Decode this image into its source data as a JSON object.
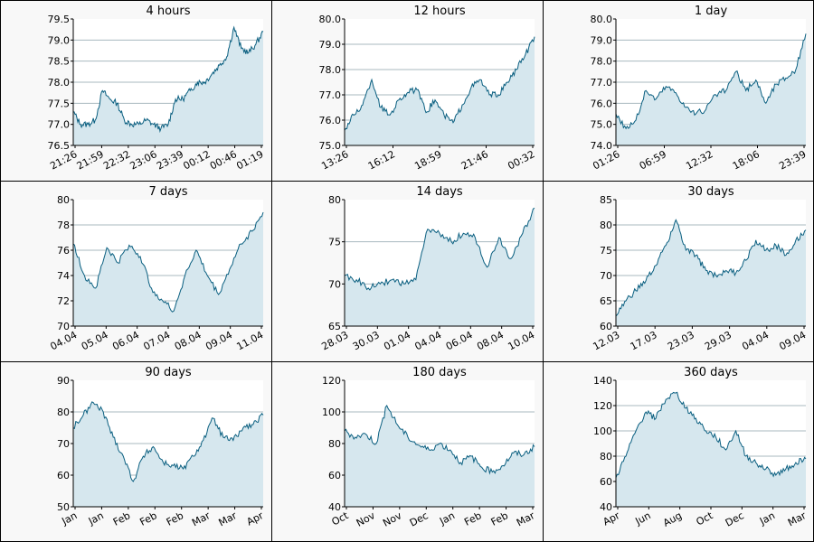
{
  "colors": {
    "line": "#0a5f80",
    "fill": "#d6e7ee",
    "grid": "#a8b8bf",
    "axis": "#000000",
    "panel_bg": "#f8f8f8",
    "plot_bg": "#ffffff"
  },
  "chart_data": [
    {
      "type": "area",
      "title": "4 hours",
      "ylim": [
        76.5,
        79.5
      ],
      "yticks": [
        "79.5",
        "79.0",
        "78.5",
        "78.0",
        "77.5",
        "77.0",
        "76.5"
      ],
      "xticks": [
        "21:26",
        "21:59",
        "22:32",
        "23:06",
        "23:39",
        "00:12",
        "00:46",
        "01:19"
      ],
      "values": [
        77.3,
        77.0,
        77.0,
        77.1,
        77.8,
        77.6,
        77.5,
        77.1,
        77.0,
        77.0,
        77.1,
        77.0,
        76.9,
        77.0,
        77.6,
        77.6,
        77.8,
        78.0,
        78.0,
        78.2,
        78.4,
        78.6,
        79.3,
        78.8,
        78.7,
        78.9,
        79.2
      ]
    },
    {
      "type": "area",
      "title": "12 hours",
      "ylim": [
        75.0,
        80.0
      ],
      "yticks": [
        "80.0",
        "79.0",
        "78.0",
        "77.0",
        "76.0",
        "75.0"
      ],
      "xticks": [
        "13:26",
        "16:12",
        "18:59",
        "21:46",
        "00:32"
      ],
      "values": [
        75.6,
        76.2,
        76.6,
        77.6,
        76.5,
        76.2,
        76.8,
        77.1,
        77.2,
        76.3,
        76.8,
        76.2,
        75.9,
        76.6,
        77.3,
        77.6,
        77.0,
        77.0,
        77.5,
        78.0,
        78.6,
        79.3
      ]
    },
    {
      "type": "area",
      "title": "1 day",
      "ylim": [
        74.0,
        80.0
      ],
      "yticks": [
        "80.0",
        "79.0",
        "78.0",
        "77.0",
        "76.0",
        "75.0",
        "74.0"
      ],
      "xticks": [
        "01:26",
        "06:59",
        "12:32",
        "18:06",
        "23:39"
      ],
      "values": [
        75.5,
        74.8,
        75.2,
        76.6,
        76.2,
        76.8,
        76.5,
        75.8,
        75.5,
        75.7,
        76.4,
        76.6,
        77.5,
        76.6,
        77.1,
        76.0,
        76.9,
        77.2,
        77.6,
        79.3
      ]
    },
    {
      "type": "area",
      "title": "7 days",
      "ylim": [
        70,
        80
      ],
      "yticks": [
        "80",
        "78",
        "76",
        "74",
        "72",
        "70"
      ],
      "xticks": [
        "04.04",
        "05.04",
        "06.04",
        "07.04",
        "08.04",
        "09.04",
        "11.04"
      ],
      "values": [
        76.5,
        74.0,
        73.0,
        76.2,
        75.0,
        76.4,
        75.5,
        73.0,
        72.0,
        71.2,
        74.0,
        76.0,
        74.0,
        72.5,
        74.5,
        76.5,
        77.5,
        79.0
      ]
    },
    {
      "type": "area",
      "title": "14 days",
      "ylim": [
        65,
        80
      ],
      "yticks": [
        "80",
        "75",
        "70",
        "65"
      ],
      "xticks": [
        "28.03",
        "30.03",
        "01.04",
        "04.04",
        "06.04",
        "08.04",
        "10.04"
      ],
      "values": [
        71.0,
        70.5,
        69.5,
        70.0,
        70.5,
        70.0,
        70.5,
        76.5,
        76.0,
        75.0,
        76.0,
        75.5,
        72.0,
        75.5,
        73.0,
        76.0,
        79.0
      ]
    },
    {
      "type": "area",
      "title": "30 days",
      "ylim": [
        60,
        85
      ],
      "yticks": [
        "85",
        "80",
        "75",
        "70",
        "65",
        "60"
      ],
      "xticks": [
        "12.03",
        "17.03",
        "23.03",
        "29.03",
        "04.04",
        "09.04"
      ],
      "values": [
        62.0,
        65.0,
        67.0,
        69.0,
        72.0,
        76.0,
        81.0,
        75.0,
        74.0,
        71.0,
        70.0,
        71.0,
        70.5,
        73.0,
        77.0,
        75.0,
        76.0,
        74.0,
        77.0,
        79.0
      ]
    },
    {
      "type": "area",
      "title": "90 days",
      "ylim": [
        50,
        90
      ],
      "yticks": [
        "90",
        "80",
        "70",
        "60",
        "50"
      ],
      "xticks": [
        "Jan",
        "Jan",
        "Feb",
        "Feb",
        "Feb",
        "Mar",
        "Mar",
        "Apr"
      ],
      "values": [
        75.0,
        79.0,
        83.0,
        80.0,
        72.0,
        66.0,
        58.0,
        66.0,
        69.0,
        64.0,
        63.0,
        62.0,
        66.0,
        71.0,
        78.0,
        72.0,
        71.0,
        75.0,
        76.0,
        79.0
      ]
    },
    {
      "type": "area",
      "title": "180 days",
      "ylim": [
        40,
        120
      ],
      "yticks": [
        "120",
        "100",
        "80",
        "60",
        "40"
      ],
      "xticks": [
        "Oct",
        "Nov",
        "Nov",
        "Dec",
        "Jan",
        "Feb",
        "Feb",
        "Mar"
      ],
      "values": [
        88.0,
        84.0,
        86.0,
        80.0,
        104.0,
        92.0,
        84.0,
        79.0,
        76.0,
        80.0,
        76.0,
        68.0,
        72.0,
        65.0,
        62.0,
        66.0,
        74.0,
        73.0,
        78.0
      ]
    },
    {
      "type": "area",
      "title": "360 days",
      "ylim": [
        40,
        140
      ],
      "yticks": [
        "140",
        "120",
        "100",
        "80",
        "60",
        "40"
      ],
      "xticks": [
        "Apr",
        "Jun",
        "Aug",
        "Oct",
        "Dec",
        "Jan",
        "Mar"
      ],
      "values": [
        63.0,
        80.0,
        100.0,
        115.0,
        110.0,
        125.0,
        130.0,
        118.0,
        110.0,
        100.0,
        95.0,
        85.0,
        100.0,
        80.0,
        75.0,
        70.0,
        65.0,
        70.0,
        75.0,
        78.0
      ]
    }
  ]
}
